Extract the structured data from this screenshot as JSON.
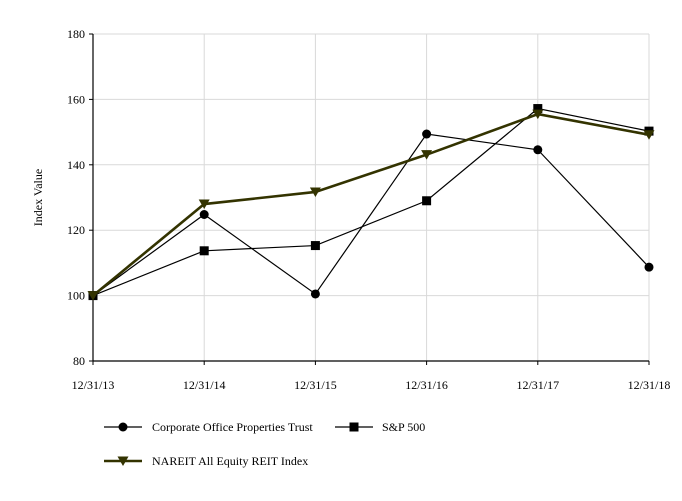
{
  "chart_data": {
    "type": "line",
    "title": "",
    "xlabel": "",
    "ylabel": "Index Value",
    "categories": [
      "12/31/13",
      "12/31/14",
      "12/31/15",
      "12/31/16",
      "12/31/17",
      "12/31/18"
    ],
    "ylim": [
      80,
      180
    ],
    "yticks": [
      80,
      100,
      120,
      140,
      160,
      180
    ],
    "grid": true,
    "legend_position": "bottom",
    "series": [
      {
        "name": "Corporate Office Properties Trust",
        "values": [
          100,
          124.8,
          100.5,
          149.4,
          144.6,
          108.7
        ],
        "marker": "circle",
        "color": "#000000"
      },
      {
        "name": "S&P 500",
        "values": [
          100,
          113.7,
          115.3,
          129.0,
          157.2,
          150.3
        ],
        "marker": "square",
        "color": "#000000"
      },
      {
        "name": "NAREIT All Equity REIT Index",
        "values": [
          100,
          128.0,
          131.7,
          143.1,
          155.5,
          149.2
        ],
        "marker": "triangle-down",
        "color": "#333300"
      }
    ]
  }
}
